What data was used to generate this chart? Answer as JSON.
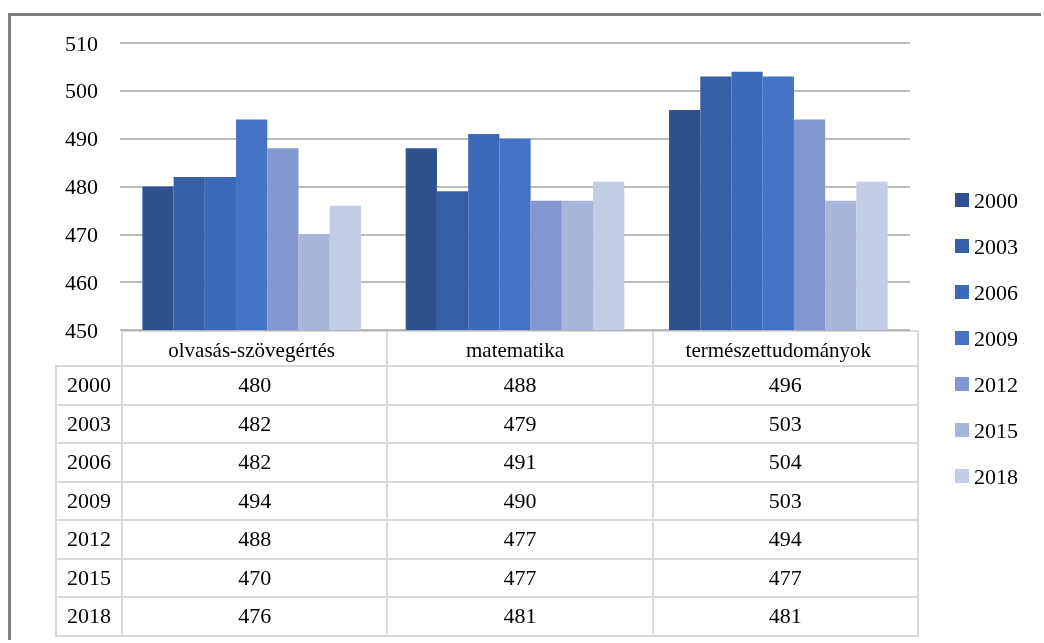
{
  "chart_data": {
    "type": "bar",
    "categories": [
      "olvasás-szövegértés",
      "matematika",
      "természettudományok"
    ],
    "series": [
      {
        "name": "2000",
        "color": "#2f528f",
        "values": [
          480,
          488,
          496
        ]
      },
      {
        "name": "2003",
        "color": "#365fa6",
        "values": [
          482,
          479,
          503
        ]
      },
      {
        "name": "2006",
        "color": "#3d6ab8",
        "values": [
          482,
          491,
          504
        ]
      },
      {
        "name": "2009",
        "color": "#4472c4",
        "values": [
          494,
          490,
          503
        ]
      },
      {
        "name": "2012",
        "color": "#8298cf",
        "values": [
          488,
          477,
          494
        ]
      },
      {
        "name": "2015",
        "color": "#a9b5db",
        "values": [
          470,
          477,
          477
        ]
      },
      {
        "name": "2018",
        "color": "#c3cde6",
        "values": [
          476,
          481,
          481
        ]
      }
    ],
    "ylim": [
      450,
      510
    ],
    "yticks": [
      450,
      460,
      470,
      480,
      490,
      500,
      510
    ],
    "grid": "y",
    "legend": "right",
    "data_labels": true
  }
}
